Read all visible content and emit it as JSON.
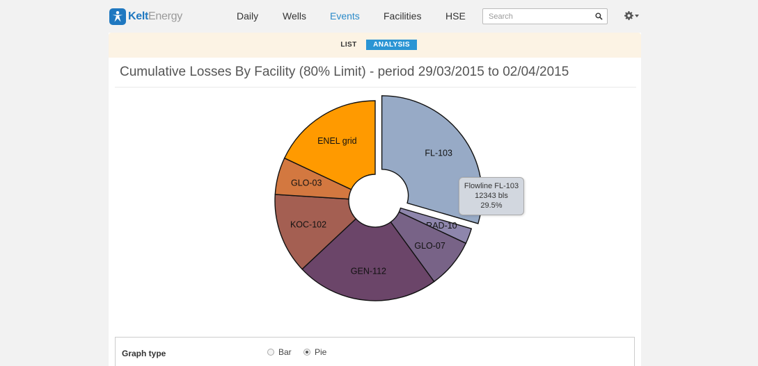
{
  "brand": {
    "name_part1": "Kelt",
    "name_part2": "Energy",
    "logo_icon": "person-star-icon",
    "color": "#1f78c0"
  },
  "nav": {
    "items": [
      {
        "label": "Daily",
        "active": false
      },
      {
        "label": "Wells",
        "active": false
      },
      {
        "label": "Events",
        "active": true
      },
      {
        "label": "Facilities",
        "active": false
      },
      {
        "label": "HSE",
        "active": false
      }
    ],
    "search_placeholder": "Search",
    "search_icon": "search-icon",
    "settings_icon": "gear-icon"
  },
  "tabs": [
    {
      "label": "LIST",
      "active": false
    },
    {
      "label": "ANALYSIS",
      "active": true
    }
  ],
  "page_title": "Cumulative Losses By Facility (80% Limit) - period 29/03/2015 to 02/04/2015",
  "chart_data": {
    "type": "pie",
    "donut": true,
    "start": "12 o'clock, clockwise",
    "slices": [
      {
        "label": "FL-103",
        "value": 29.5,
        "color": "#97aac6",
        "exploded": true
      },
      {
        "label": "RAD-10",
        "value": 2.5,
        "color": "#8e86ac",
        "exploded": false
      },
      {
        "label": "GLO-07",
        "value": 8,
        "color": "#786387",
        "exploded": false
      },
      {
        "label": "GEN-112",
        "value": 23,
        "color": "#6b4569",
        "exploded": false
      },
      {
        "label": "KOC-102",
        "value": 13,
        "color": "#a45f52",
        "exploded": false
      },
      {
        "label": "GLO-03",
        "value": 6,
        "color": "#d37840",
        "exploded": false
      },
      {
        "label": "ENEL grid",
        "value": 18,
        "color": "#ff9a00",
        "exploded": false
      }
    ]
  },
  "tooltip": {
    "title": "Flowline FL-103",
    "value": "12343 bls",
    "percent": "29.5%"
  },
  "graph_type": {
    "label": "Graph type",
    "options": [
      {
        "label": "Bar",
        "checked": false
      },
      {
        "label": "Pie",
        "checked": true
      }
    ]
  }
}
